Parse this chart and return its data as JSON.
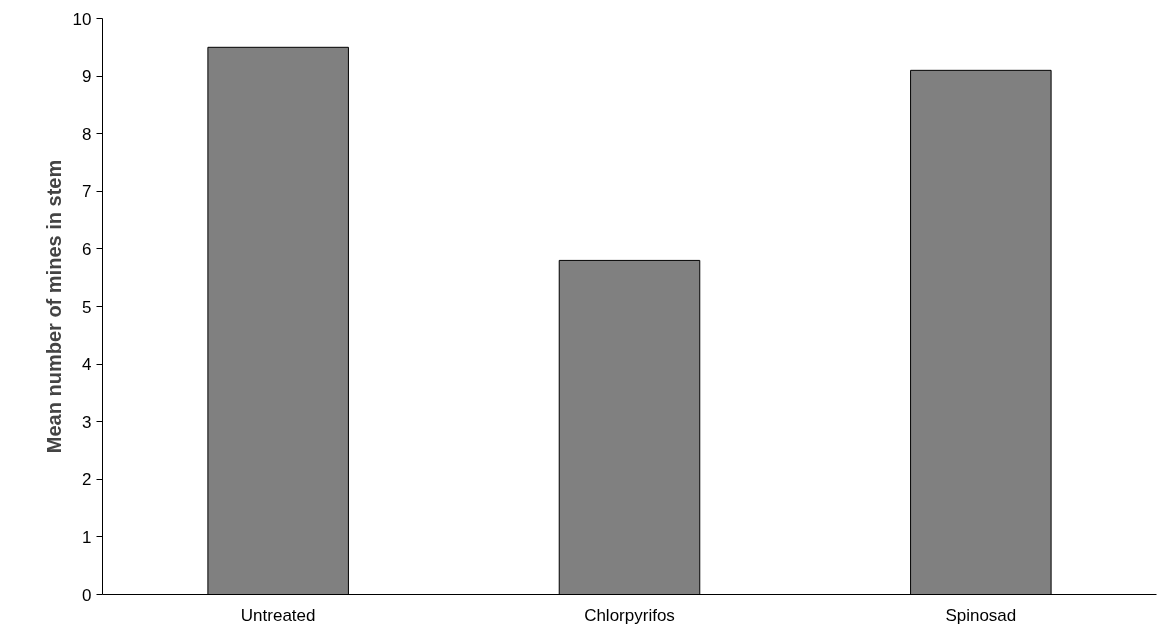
{
  "chart_data": {
    "type": "bar",
    "ylabel": "Mean number of mines in stem",
    "categories": [
      "Untreated",
      "Chlorpyrifos",
      "Spinosad"
    ],
    "values": [
      9.5,
      5.8,
      9.1
    ],
    "color": "#808080",
    "ylim": [
      0,
      10
    ],
    "yticks": [
      0,
      1,
      2,
      3,
      4,
      5,
      6,
      7,
      8,
      9,
      10
    ],
    "grid": false
  }
}
